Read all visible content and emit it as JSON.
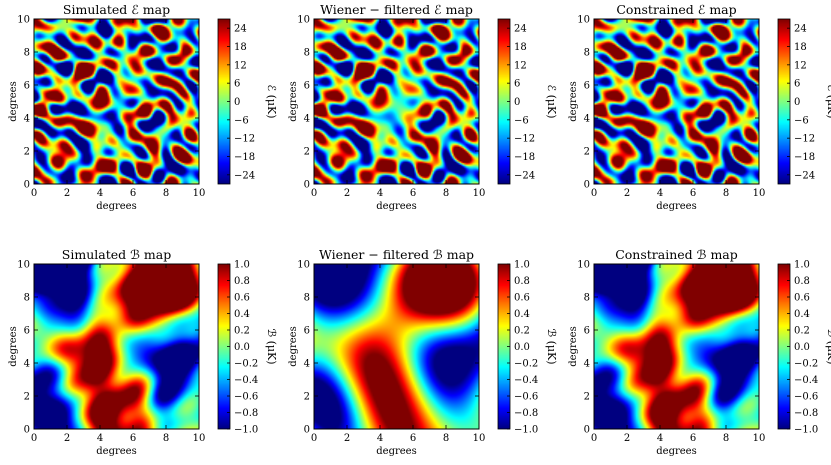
{
  "chart_data": [
    {
      "type": "heatmap",
      "title": "Simulated ℰ map",
      "xlabel": "degrees",
      "ylabel": "degrees",
      "xlim": [
        0,
        10
      ],
      "ylim": [
        0,
        10
      ],
      "xticks": [
        "0",
        "2",
        "4",
        "6",
        "8",
        "10"
      ],
      "yticks": [
        "0",
        "2",
        "4",
        "6",
        "8",
        "10"
      ],
      "colorbar": {
        "label": "ℰ (μK)",
        "range": [
          -27,
          27
        ],
        "ticks": [
          "−24",
          "−18",
          "−12",
          "−6",
          "0",
          "6",
          "12",
          "18",
          "24"
        ],
        "tick_values": [
          -24,
          -18,
          -12,
          -6,
          0,
          6,
          12,
          18,
          24
        ]
      },
      "field": {
        "kind": "E",
        "scale": "small",
        "mask_center": false
      }
    },
    {
      "type": "heatmap",
      "title": "Wiener − filtered ℰ map",
      "xlabel": "degrees",
      "ylabel": "degrees",
      "xlim": [
        0,
        10
      ],
      "ylim": [
        0,
        10
      ],
      "xticks": [
        "0",
        "2",
        "4",
        "6",
        "8",
        "10"
      ],
      "yticks": [
        "0",
        "2",
        "4",
        "6",
        "8",
        "10"
      ],
      "colorbar": {
        "label": "ℰ (μK)",
        "range": [
          -27,
          27
        ],
        "ticks": [
          "−24",
          "−18",
          "−12",
          "−6",
          "0",
          "6",
          "12",
          "18",
          "24"
        ],
        "tick_values": [
          -24,
          -18,
          -12,
          -6,
          0,
          6,
          12,
          18,
          24
        ]
      },
      "field": {
        "kind": "E",
        "scale": "small",
        "mask_center": true
      }
    },
    {
      "type": "heatmap",
      "title": "Constrained ℰ map",
      "xlabel": "degrees",
      "ylabel": "degrees",
      "xlim": [
        0,
        10
      ],
      "ylim": [
        0,
        10
      ],
      "xticks": [
        "0",
        "2",
        "4",
        "6",
        "8",
        "10"
      ],
      "yticks": [
        "0",
        "2",
        "4",
        "6",
        "8",
        "10"
      ],
      "colorbar": {
        "label": "ℰ (μK)",
        "range": [
          -27,
          27
        ],
        "ticks": [
          "−24",
          "−18",
          "−12",
          "−6",
          "0",
          "6",
          "12",
          "18",
          "24"
        ],
        "tick_values": [
          -24,
          -18,
          -12,
          -6,
          0,
          6,
          12,
          18,
          24
        ]
      },
      "field": {
        "kind": "E",
        "scale": "small",
        "mask_center": false
      }
    },
    {
      "type": "heatmap",
      "title": "Simulated ℬ map",
      "xlabel": "degrees",
      "ylabel": "degrees",
      "xlim": [
        0,
        10
      ],
      "ylim": [
        0,
        10
      ],
      "xticks": [
        "0",
        "2",
        "4",
        "6",
        "8",
        "10"
      ],
      "yticks": [
        "0",
        "2",
        "4",
        "6",
        "8",
        "10"
      ],
      "colorbar": {
        "label": "ℬ (μK)",
        "range": [
          -1.0,
          1.0
        ],
        "ticks": [
          "−1.0",
          "−0.8",
          "−0.6",
          "−0.4",
          "−0.2",
          "0.0",
          "0.2",
          "0.4",
          "0.6",
          "0.8",
          "1.0"
        ],
        "tick_values": [
          -1.0,
          -0.8,
          -0.6,
          -0.4,
          -0.2,
          0.0,
          0.2,
          0.4,
          0.6,
          0.8,
          1.0
        ]
      },
      "field": {
        "kind": "B",
        "scale": "large",
        "smooth": false
      }
    },
    {
      "type": "heatmap",
      "title": "Wiener − filtered ℬ map",
      "xlabel": "degrees",
      "ylabel": "degrees",
      "xlim": [
        0,
        10
      ],
      "ylim": [
        0,
        10
      ],
      "xticks": [
        "0",
        "2",
        "4",
        "6",
        "8",
        "10"
      ],
      "yticks": [
        "0",
        "2",
        "4",
        "6",
        "8",
        "10"
      ],
      "colorbar": {
        "label": "ℬ (μK)",
        "range": [
          -1.0,
          1.0
        ],
        "ticks": [
          "−1.0",
          "−0.8",
          "−0.6",
          "−0.4",
          "−0.2",
          "0.0",
          "0.2",
          "0.4",
          "0.6",
          "0.8",
          "1.0"
        ],
        "tick_values": [
          -1.0,
          -0.8,
          -0.6,
          -0.4,
          -0.2,
          0.0,
          0.2,
          0.4,
          0.6,
          0.8,
          1.0
        ]
      },
      "field": {
        "kind": "B",
        "scale": "large",
        "smooth": true
      }
    },
    {
      "type": "heatmap",
      "title": "Constrained ℬ map",
      "xlabel": "degrees",
      "ylabel": "degrees",
      "xlim": [
        0,
        10
      ],
      "ylim": [
        0,
        10
      ],
      "xticks": [
        "0",
        "2",
        "4",
        "6",
        "8",
        "10"
      ],
      "yticks": [
        "0",
        "2",
        "4",
        "6",
        "8",
        "10"
      ],
      "colorbar": {
        "label": "ℬ (μK)",
        "range": [
          -1.0,
          1.0
        ],
        "ticks": [
          "−1.0",
          "−0.8",
          "−0.6",
          "−0.4",
          "−0.2",
          "0.0",
          "0.2",
          "0.4",
          "0.6",
          "0.8",
          "1.0"
        ],
        "tick_values": [
          -1.0,
          -0.8,
          -0.6,
          -0.4,
          -0.2,
          0.0,
          0.2,
          0.4,
          0.6,
          0.8,
          1.0
        ]
      },
      "field": {
        "kind": "B",
        "scale": "large",
        "smooth": false
      }
    }
  ]
}
